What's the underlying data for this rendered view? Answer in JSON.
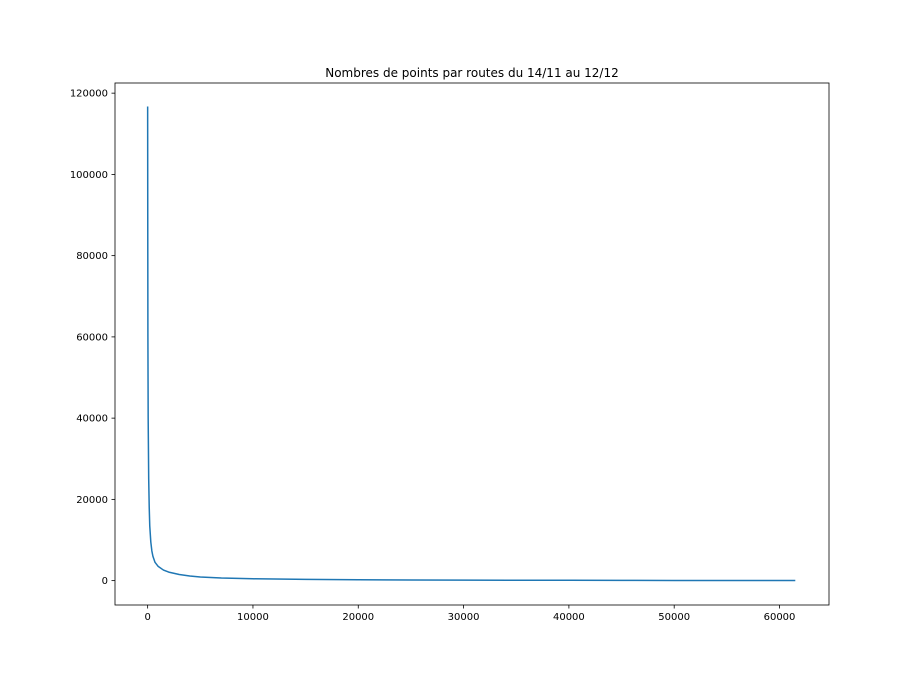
{
  "chart_data": {
    "type": "line",
    "title": "Nombres de points par routes du 14/11 au 12/12",
    "xlabel": "",
    "ylabel": "",
    "xlim": [
      -3100,
      64700
    ],
    "ylim": [
      -6000,
      122500
    ],
    "x_ticks": [
      0,
      10000,
      20000,
      30000,
      40000,
      50000,
      60000
    ],
    "x_tick_labels": [
      "0",
      "10000",
      "20000",
      "30000",
      "40000",
      "50000",
      "60000"
    ],
    "y_ticks": [
      0,
      20000,
      40000,
      60000,
      80000,
      100000,
      120000
    ],
    "y_tick_labels": [
      "0",
      "20000",
      "40000",
      "60000",
      "80000",
      "100000",
      "120000"
    ],
    "grid": false,
    "series": [
      {
        "color": "#1f77b4",
        "x": [
          0,
          10,
          25,
          50,
          100,
          150,
          200,
          300,
          400,
          500,
          700,
          1000,
          1500,
          2000,
          3000,
          4000,
          5000,
          7000,
          10000,
          15000,
          20000,
          25000,
          30000,
          35000,
          40000,
          45000,
          50000,
          55000,
          60000,
          61500
        ],
        "y": [
          116700,
          90000,
          60000,
          40000,
          25000,
          18000,
          13500,
          9500,
          7300,
          6000,
          4500,
          3500,
          2600,
          2100,
          1500,
          1150,
          900,
          650,
          450,
          300,
          220,
          170,
          130,
          100,
          80,
          60,
          45,
          35,
          25,
          20
        ]
      }
    ]
  }
}
